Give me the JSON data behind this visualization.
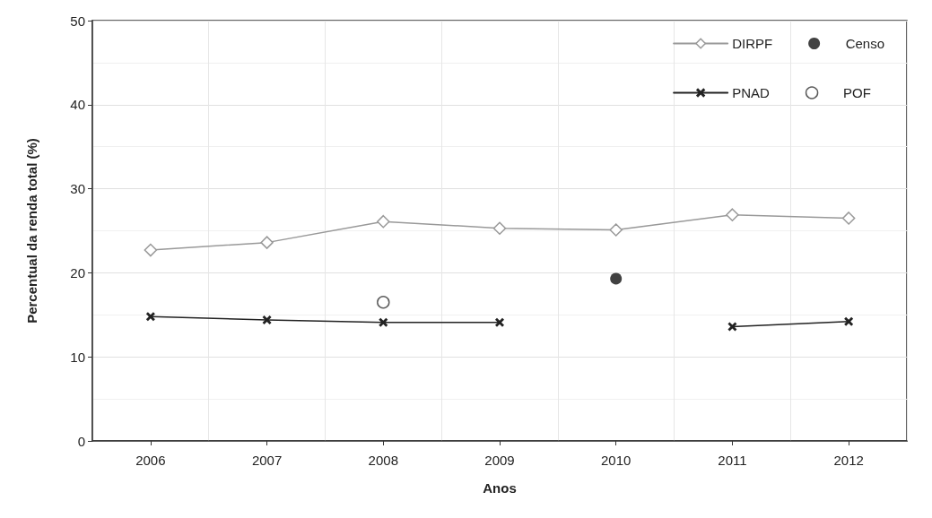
{
  "chart_data": {
    "type": "line",
    "xlabel": "Anos",
    "ylabel": "Percentual da renda total (%)",
    "categories": [
      "2006",
      "2007",
      "2008",
      "2009",
      "2010",
      "2011",
      "2012"
    ],
    "series": [
      {
        "name": "DIRPF",
        "color": "#999999",
        "colors": [
          "#ffffff",
          "#ffffff",
          "#ffffff",
          "#ffffff",
          "#ffffff",
          "#ffffff",
          "#ffffff"
        ],
        "marker": "diamond",
        "values": [
          22.7,
          23.6,
          26.1,
          25.3,
          25.1,
          26.9,
          26.5
        ]
      },
      {
        "name": "Censo",
        "type": "scatter",
        "color": "#111111",
        "marker": "circle",
        "values": [
          null,
          null,
          null,
          null,
          19.3,
          null,
          null
        ]
      },
      {
        "name": "PNAD",
        "color": "#222222",
        "marker": "cross",
        "values": [
          14.8,
          14.4,
          14.1,
          14.1,
          null,
          13.6,
          14.2
        ]
      },
      {
        "name": "POF",
        "type": "scatter",
        "color": "#333333",
        "colors": [
          null,
          null,
          "#ffffff",
          null,
          null,
          null,
          null
        ],
        "marker": "circle",
        "values": [
          null,
          null,
          16.5,
          null,
          null,
          null,
          null
        ]
      }
    ],
    "ylim": [
      0,
      50
    ],
    "yticks": [
      0,
      10,
      20,
      30,
      40,
      50
    ],
    "grid": true,
    "legend": "top right",
    "line_style": "solid"
  }
}
